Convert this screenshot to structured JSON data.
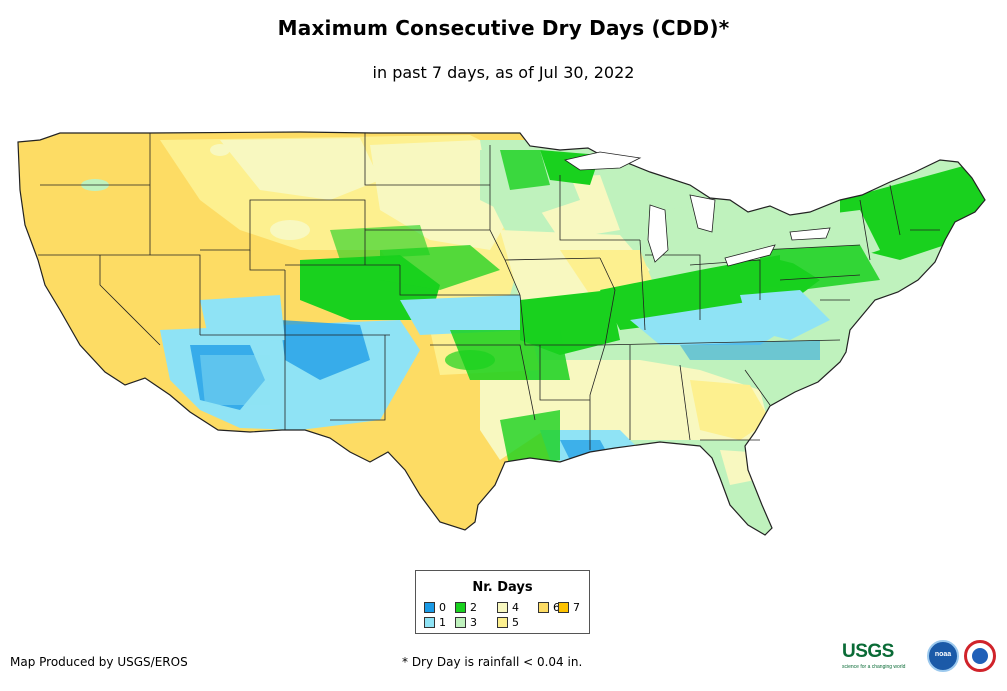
{
  "title": "Maximum Consecutive Dry Days (CDD)*",
  "subtitle": "in past 7 days, as of Jul 30, 2022",
  "legend": {
    "title": "Nr. Days",
    "items": [
      {
        "label": "0",
        "color": "#1a9ae6"
      },
      {
        "label": "1",
        "color": "#8fe3f5"
      },
      {
        "label": "2",
        "color": "#19d11e"
      },
      {
        "label": "3",
        "color": "#bff2bd"
      },
      {
        "label": "4",
        "color": "#f8f8c0"
      },
      {
        "label": "5",
        "color": "#fdf08f"
      },
      {
        "label": "6",
        "color": "#fddc64"
      },
      {
        "label": "7",
        "color": "#fdc200"
      }
    ]
  },
  "footer": {
    "credit": "Map Produced by USGS/EROS",
    "note": "* Dry Day is rainfall < 0.04 in."
  },
  "logos": {
    "usgs": "USGS",
    "usgs_tagline": "science for a changing world",
    "noaa": "noaa",
    "nws": "National Weather Service"
  },
  "colors": {
    "state_border": "#222222",
    "background": "#ffffff"
  }
}
